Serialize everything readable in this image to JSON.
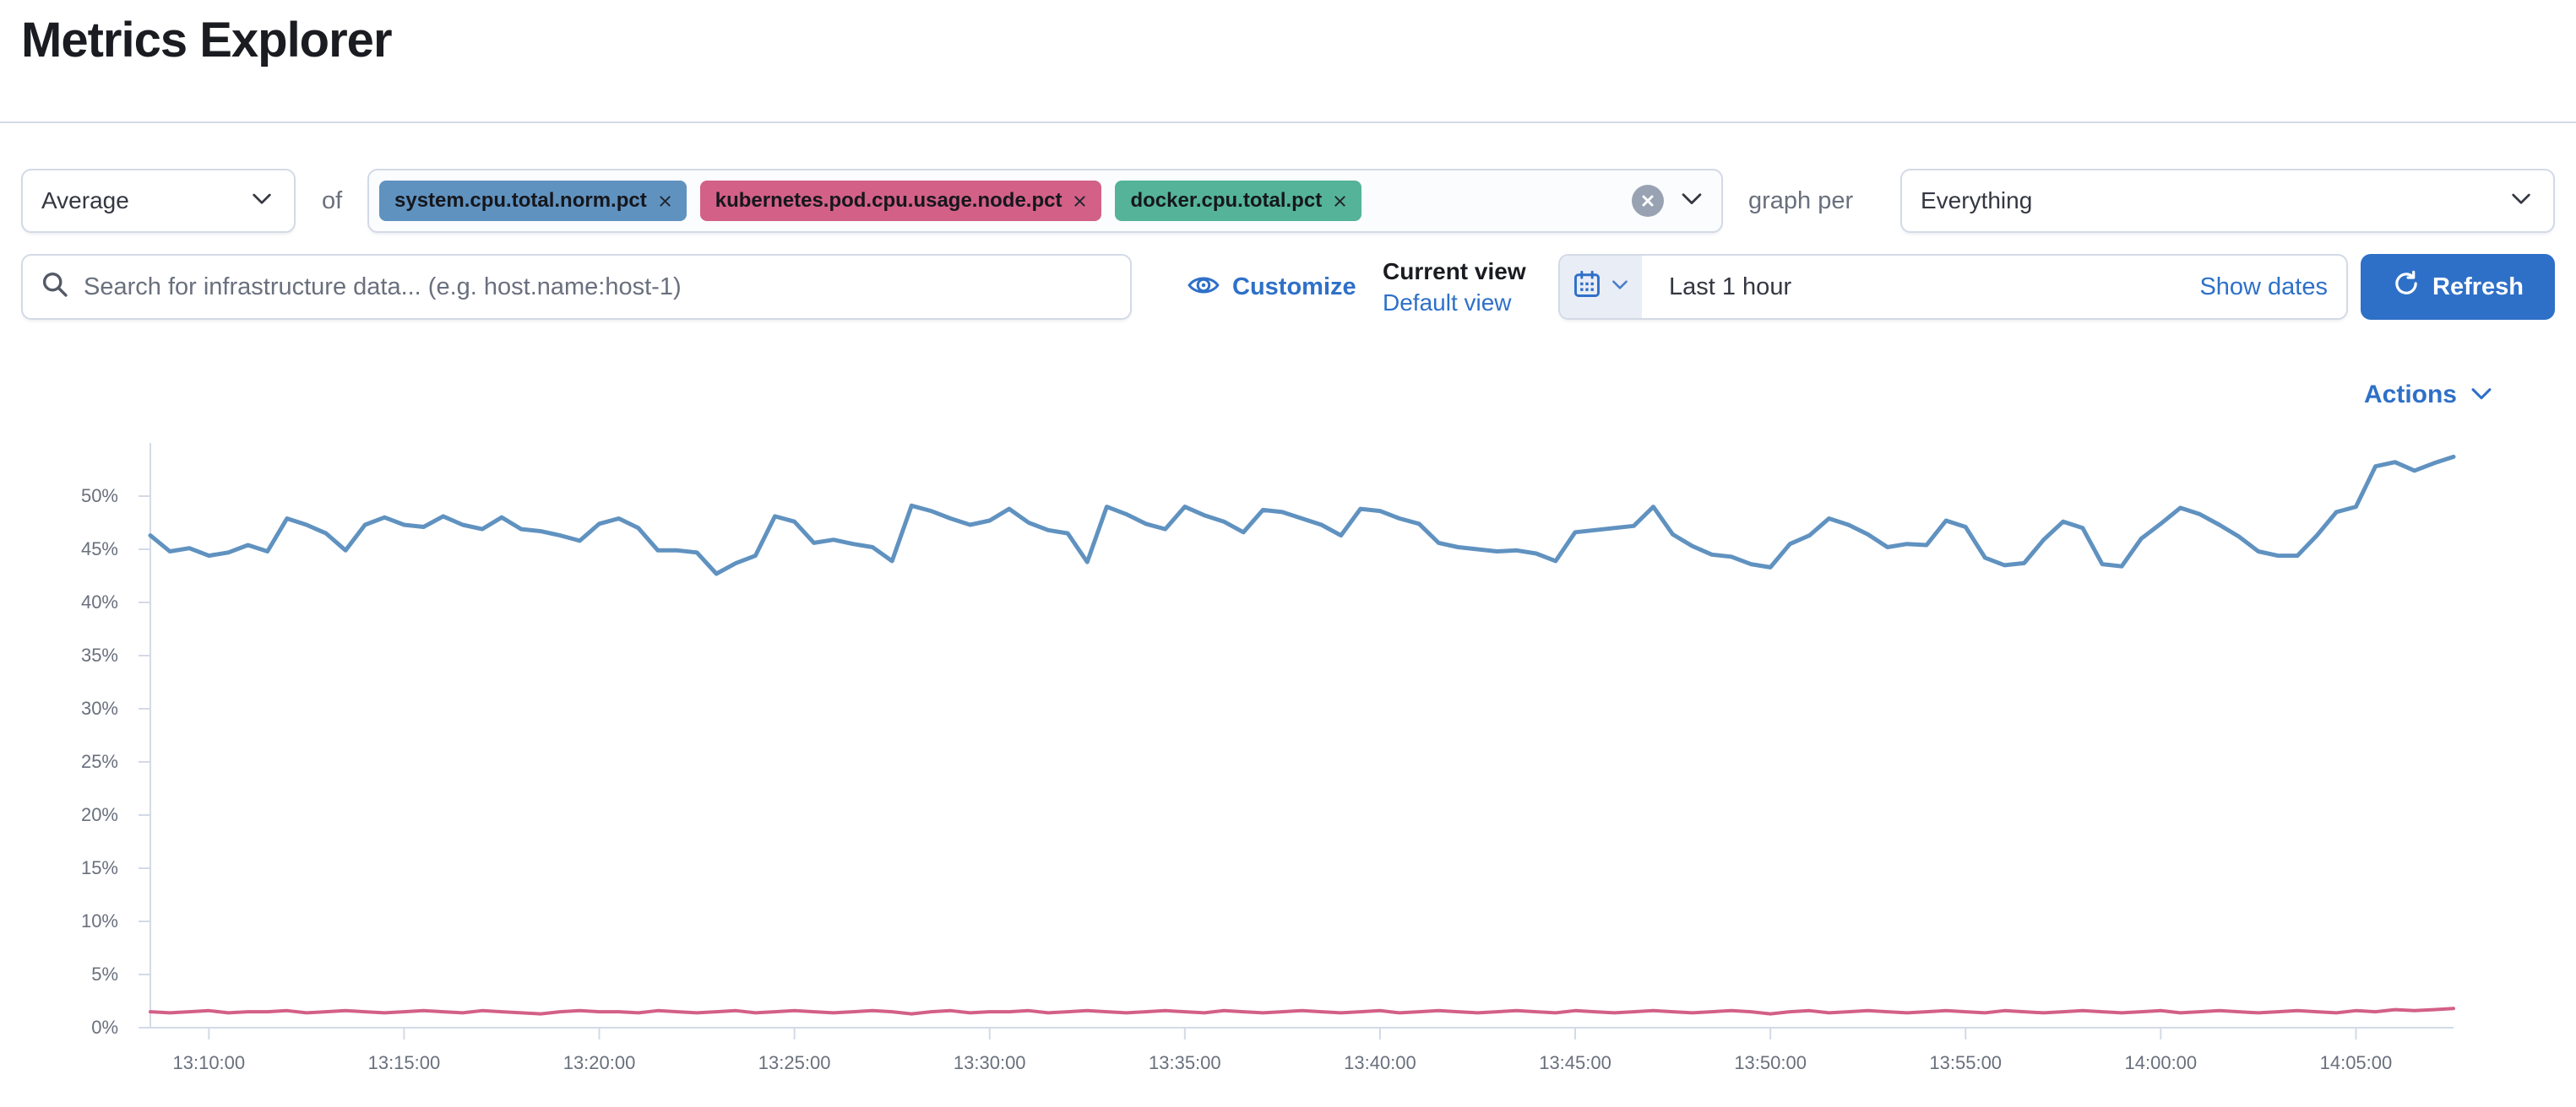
{
  "page": {
    "title": "Metrics Explorer"
  },
  "colors": {
    "primary": "#2E70C8",
    "border": "#D3DAE6",
    "text": "#343741",
    "muted": "#69707D",
    "axis": "#D3DAE6"
  },
  "icons": {
    "aggregation_chevron": "chevron-down",
    "combo_clear": "cross-in-circle",
    "combo_chevron": "chevron-down",
    "group_chevron": "chevron-down",
    "search": "magnifier",
    "customize": "eye",
    "date_toggle": "calendar",
    "date_chevron": "chevron-down",
    "refresh": "refresh-arrow",
    "actions_chevron": "chevron-down",
    "pill_remove": "cross"
  },
  "toolbar": {
    "aggregation_value": "Average",
    "of_label": "of",
    "metrics": [
      {
        "label": "system.cpu.total.norm.pct",
        "color": "#6092C0"
      },
      {
        "label": "kubernetes.pod.cpu.usage.node.pct",
        "color": "#D36086"
      },
      {
        "label": "docker.cpu.total.pct",
        "color": "#54B399"
      }
    ],
    "graph_per_label": "graph per",
    "group_by_value": "Everything"
  },
  "searchbar": {
    "placeholder": "Search for infrastructure data... (e.g. host.name:host-1)"
  },
  "view_controls": {
    "customize_label": "Customize",
    "current_view_label": "Current view",
    "default_view_label": "Default view"
  },
  "time_picker": {
    "range_label": "Last 1 hour",
    "show_dates_label": "Show dates",
    "refresh_label": "Refresh"
  },
  "chart": {
    "actions_label": "Actions"
  },
  "chart_data": {
    "type": "line",
    "title": "",
    "xlabel": "",
    "ylabel": "",
    "grid": "ticks-only",
    "legend_position": "none",
    "y_axis_max": 55,
    "y_ticks": [
      {
        "value": 0,
        "label": "0%"
      },
      {
        "value": 5,
        "label": "5%"
      },
      {
        "value": 10,
        "label": "10%"
      },
      {
        "value": 15,
        "label": "15%"
      },
      {
        "value": 20,
        "label": "20%"
      },
      {
        "value": 25,
        "label": "25%"
      },
      {
        "value": 30,
        "label": "30%"
      },
      {
        "value": 35,
        "label": "35%"
      },
      {
        "value": 40,
        "label": "40%"
      },
      {
        "value": 45,
        "label": "45%"
      },
      {
        "value": 50,
        "label": "50%"
      }
    ],
    "x_start": "13:08:30",
    "x_end": "14:07:30",
    "x_interval_seconds": 30,
    "x_tick_labels": [
      "13:10:00",
      "13:15:00",
      "13:20:00",
      "13:25:00",
      "13:30:00",
      "13:35:00",
      "13:40:00",
      "13:45:00",
      "13:50:00",
      "13:55:00",
      "14:00:00",
      "14:05:00"
    ],
    "series": [
      {
        "name": "system.cpu.total.norm.pct",
        "color": "#6092C0",
        "stroke_width": 5,
        "values": [
          46.3,
          44.8,
          45.1,
          44.4,
          44.7,
          45.4,
          44.8,
          47.9,
          47.3,
          46.5,
          44.9,
          47.3,
          48.0,
          47.3,
          47.1,
          48.1,
          47.3,
          46.9,
          48.0,
          46.9,
          46.7,
          46.3,
          45.8,
          47.4,
          47.9,
          47.0,
          44.9,
          44.9,
          44.7,
          42.7,
          43.7,
          44.4,
          48.1,
          47.6,
          45.6,
          45.9,
          45.5,
          45.2,
          43.9,
          49.1,
          48.6,
          47.9,
          47.3,
          47.7,
          48.8,
          47.5,
          46.8,
          46.5,
          43.8,
          49.0,
          48.3,
          47.4,
          46.9,
          49.0,
          48.2,
          47.6,
          46.6,
          48.7,
          48.5,
          47.9,
          47.3,
          46.3,
          48.8,
          48.6,
          47.9,
          47.4,
          45.6,
          45.2,
          45.0,
          44.8,
          44.9,
          44.6,
          43.9,
          46.6,
          46.8,
          47.0,
          47.2,
          49.0,
          46.4,
          45.3,
          44.5,
          44.3,
          43.6,
          43.3,
          45.5,
          46.3,
          47.9,
          47.3,
          46.4,
          45.2,
          45.5,
          45.4,
          47.7,
          47.1,
          44.2,
          43.5,
          43.7,
          45.9,
          47.6,
          47.0,
          43.6,
          43.4,
          46.0,
          47.4,
          48.9,
          48.3,
          47.3,
          46.2,
          44.8,
          44.4,
          44.4,
          46.3,
          48.5,
          49.0,
          52.8,
          53.2,
          52.4,
          53.1,
          53.7
        ]
      },
      {
        "name": "kubernetes.pod.cpu.usage.node.pct",
        "color": "#D36086",
        "stroke_width": 4,
        "values": [
          1.5,
          1.4,
          1.5,
          1.6,
          1.4,
          1.5,
          1.5,
          1.6,
          1.4,
          1.5,
          1.6,
          1.5,
          1.4,
          1.5,
          1.6,
          1.5,
          1.4,
          1.6,
          1.5,
          1.4,
          1.3,
          1.5,
          1.6,
          1.5,
          1.5,
          1.4,
          1.6,
          1.5,
          1.4,
          1.5,
          1.6,
          1.4,
          1.5,
          1.6,
          1.5,
          1.4,
          1.5,
          1.6,
          1.5,
          1.3,
          1.5,
          1.6,
          1.4,
          1.5,
          1.5,
          1.6,
          1.4,
          1.5,
          1.6,
          1.5,
          1.4,
          1.5,
          1.6,
          1.5,
          1.4,
          1.6,
          1.5,
          1.4,
          1.5,
          1.6,
          1.5,
          1.4,
          1.5,
          1.6,
          1.4,
          1.5,
          1.6,
          1.5,
          1.4,
          1.5,
          1.6,
          1.5,
          1.4,
          1.6,
          1.5,
          1.4,
          1.5,
          1.6,
          1.5,
          1.4,
          1.5,
          1.6,
          1.5,
          1.3,
          1.5,
          1.6,
          1.4,
          1.5,
          1.6,
          1.5,
          1.4,
          1.5,
          1.6,
          1.5,
          1.4,
          1.6,
          1.5,
          1.4,
          1.5,
          1.6,
          1.5,
          1.4,
          1.5,
          1.6,
          1.4,
          1.5,
          1.6,
          1.5,
          1.4,
          1.5,
          1.6,
          1.5,
          1.4,
          1.6,
          1.5,
          1.7,
          1.6,
          1.7,
          1.8
        ]
      }
    ]
  }
}
